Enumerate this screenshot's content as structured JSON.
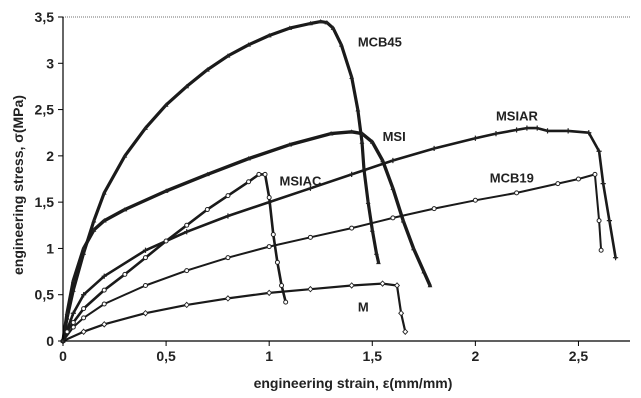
{
  "chart_data": {
    "type": "line",
    "xlabel": "engineering strain, ε(mm/mm)",
    "ylabel": "engineering stress,  σ(MPa)",
    "xlim": [
      0,
      2.75
    ],
    "ylim": [
      0,
      3.5
    ],
    "x_ticks": [
      "0",
      "0,5",
      "1",
      "1,5",
      "2",
      "2,5"
    ],
    "y_ticks": [
      "0",
      "0,5",
      "1",
      "1,5",
      "2",
      "2,5",
      "3",
      "3,5"
    ],
    "grid": "top reference line at 3,5 only",
    "series": [
      {
        "name": "MCB45",
        "x": [
          0,
          0.02,
          0.05,
          0.1,
          0.15,
          0.2,
          0.3,
          0.4,
          0.5,
          0.6,
          0.7,
          0.8,
          0.9,
          1.0,
          1.1,
          1.2,
          1.25,
          1.28,
          1.31,
          1.35,
          1.4,
          1.43,
          1.45,
          1.46,
          1.48,
          1.5,
          1.52,
          1.53
        ],
        "y": [
          0,
          0.25,
          0.55,
          0.95,
          1.3,
          1.6,
          2.0,
          2.3,
          2.55,
          2.75,
          2.93,
          3.08,
          3.2,
          3.3,
          3.38,
          3.43,
          3.45,
          3.44,
          3.38,
          3.2,
          2.85,
          2.5,
          2.15,
          1.85,
          1.5,
          1.2,
          0.95,
          0.85
        ]
      },
      {
        "name": "MSI",
        "x": [
          0,
          0.02,
          0.05,
          0.1,
          0.15,
          0.2,
          0.3,
          0.5,
          0.7,
          0.9,
          1.1,
          1.3,
          1.4,
          1.45,
          1.5,
          1.55,
          1.6,
          1.65,
          1.7,
          1.75,
          1.78
        ],
        "y": [
          0,
          0.3,
          0.65,
          1.0,
          1.2,
          1.3,
          1.42,
          1.62,
          1.8,
          1.97,
          2.12,
          2.24,
          2.26,
          2.24,
          2.15,
          1.95,
          1.65,
          1.3,
          1.0,
          0.75,
          0.6
        ]
      },
      {
        "name": "MSIAR",
        "x": [
          0,
          0.05,
          0.1,
          0.2,
          0.4,
          0.6,
          0.8,
          1.0,
          1.2,
          1.4,
          1.6,
          1.8,
          2.0,
          2.1,
          2.2,
          2.25,
          2.3,
          2.35,
          2.45,
          2.55,
          2.6,
          2.62,
          2.65,
          2.68
        ],
        "y": [
          0,
          0.3,
          0.5,
          0.7,
          0.98,
          1.18,
          1.35,
          1.5,
          1.65,
          1.8,
          1.95,
          2.08,
          2.19,
          2.24,
          2.28,
          2.3,
          2.3,
          2.27,
          2.27,
          2.25,
          2.05,
          1.7,
          1.3,
          0.9
        ]
      },
      {
        "name": "MCB19",
        "x": [
          0,
          0.05,
          0.1,
          0.2,
          0.4,
          0.6,
          0.8,
          1.0,
          1.2,
          1.4,
          1.6,
          1.8,
          2.0,
          2.2,
          2.4,
          2.5,
          2.58,
          2.6,
          2.61
        ],
        "y": [
          0,
          0.15,
          0.25,
          0.4,
          0.6,
          0.76,
          0.9,
          1.02,
          1.12,
          1.22,
          1.33,
          1.43,
          1.52,
          1.6,
          1.7,
          1.75,
          1.8,
          1.3,
          0.98
        ]
      },
      {
        "name": "MSIAC",
        "x": [
          0,
          0.02,
          0.05,
          0.1,
          0.2,
          0.3,
          0.4,
          0.5,
          0.6,
          0.7,
          0.8,
          0.9,
          0.95,
          0.98,
          1.0,
          1.02,
          1.04,
          1.06,
          1.08
        ],
        "y": [
          0,
          0.1,
          0.2,
          0.35,
          0.55,
          0.72,
          0.9,
          1.08,
          1.25,
          1.42,
          1.57,
          1.72,
          1.8,
          1.8,
          1.55,
          1.15,
          0.85,
          0.6,
          0.42
        ]
      },
      {
        "name": "M",
        "x": [
          0,
          0.1,
          0.2,
          0.4,
          0.6,
          0.8,
          1.0,
          1.2,
          1.4,
          1.55,
          1.62,
          1.64,
          1.66
        ],
        "y": [
          0,
          0.1,
          0.18,
          0.3,
          0.39,
          0.46,
          0.52,
          0.56,
          0.6,
          0.62,
          0.6,
          0.3,
          0.1
        ]
      }
    ]
  }
}
